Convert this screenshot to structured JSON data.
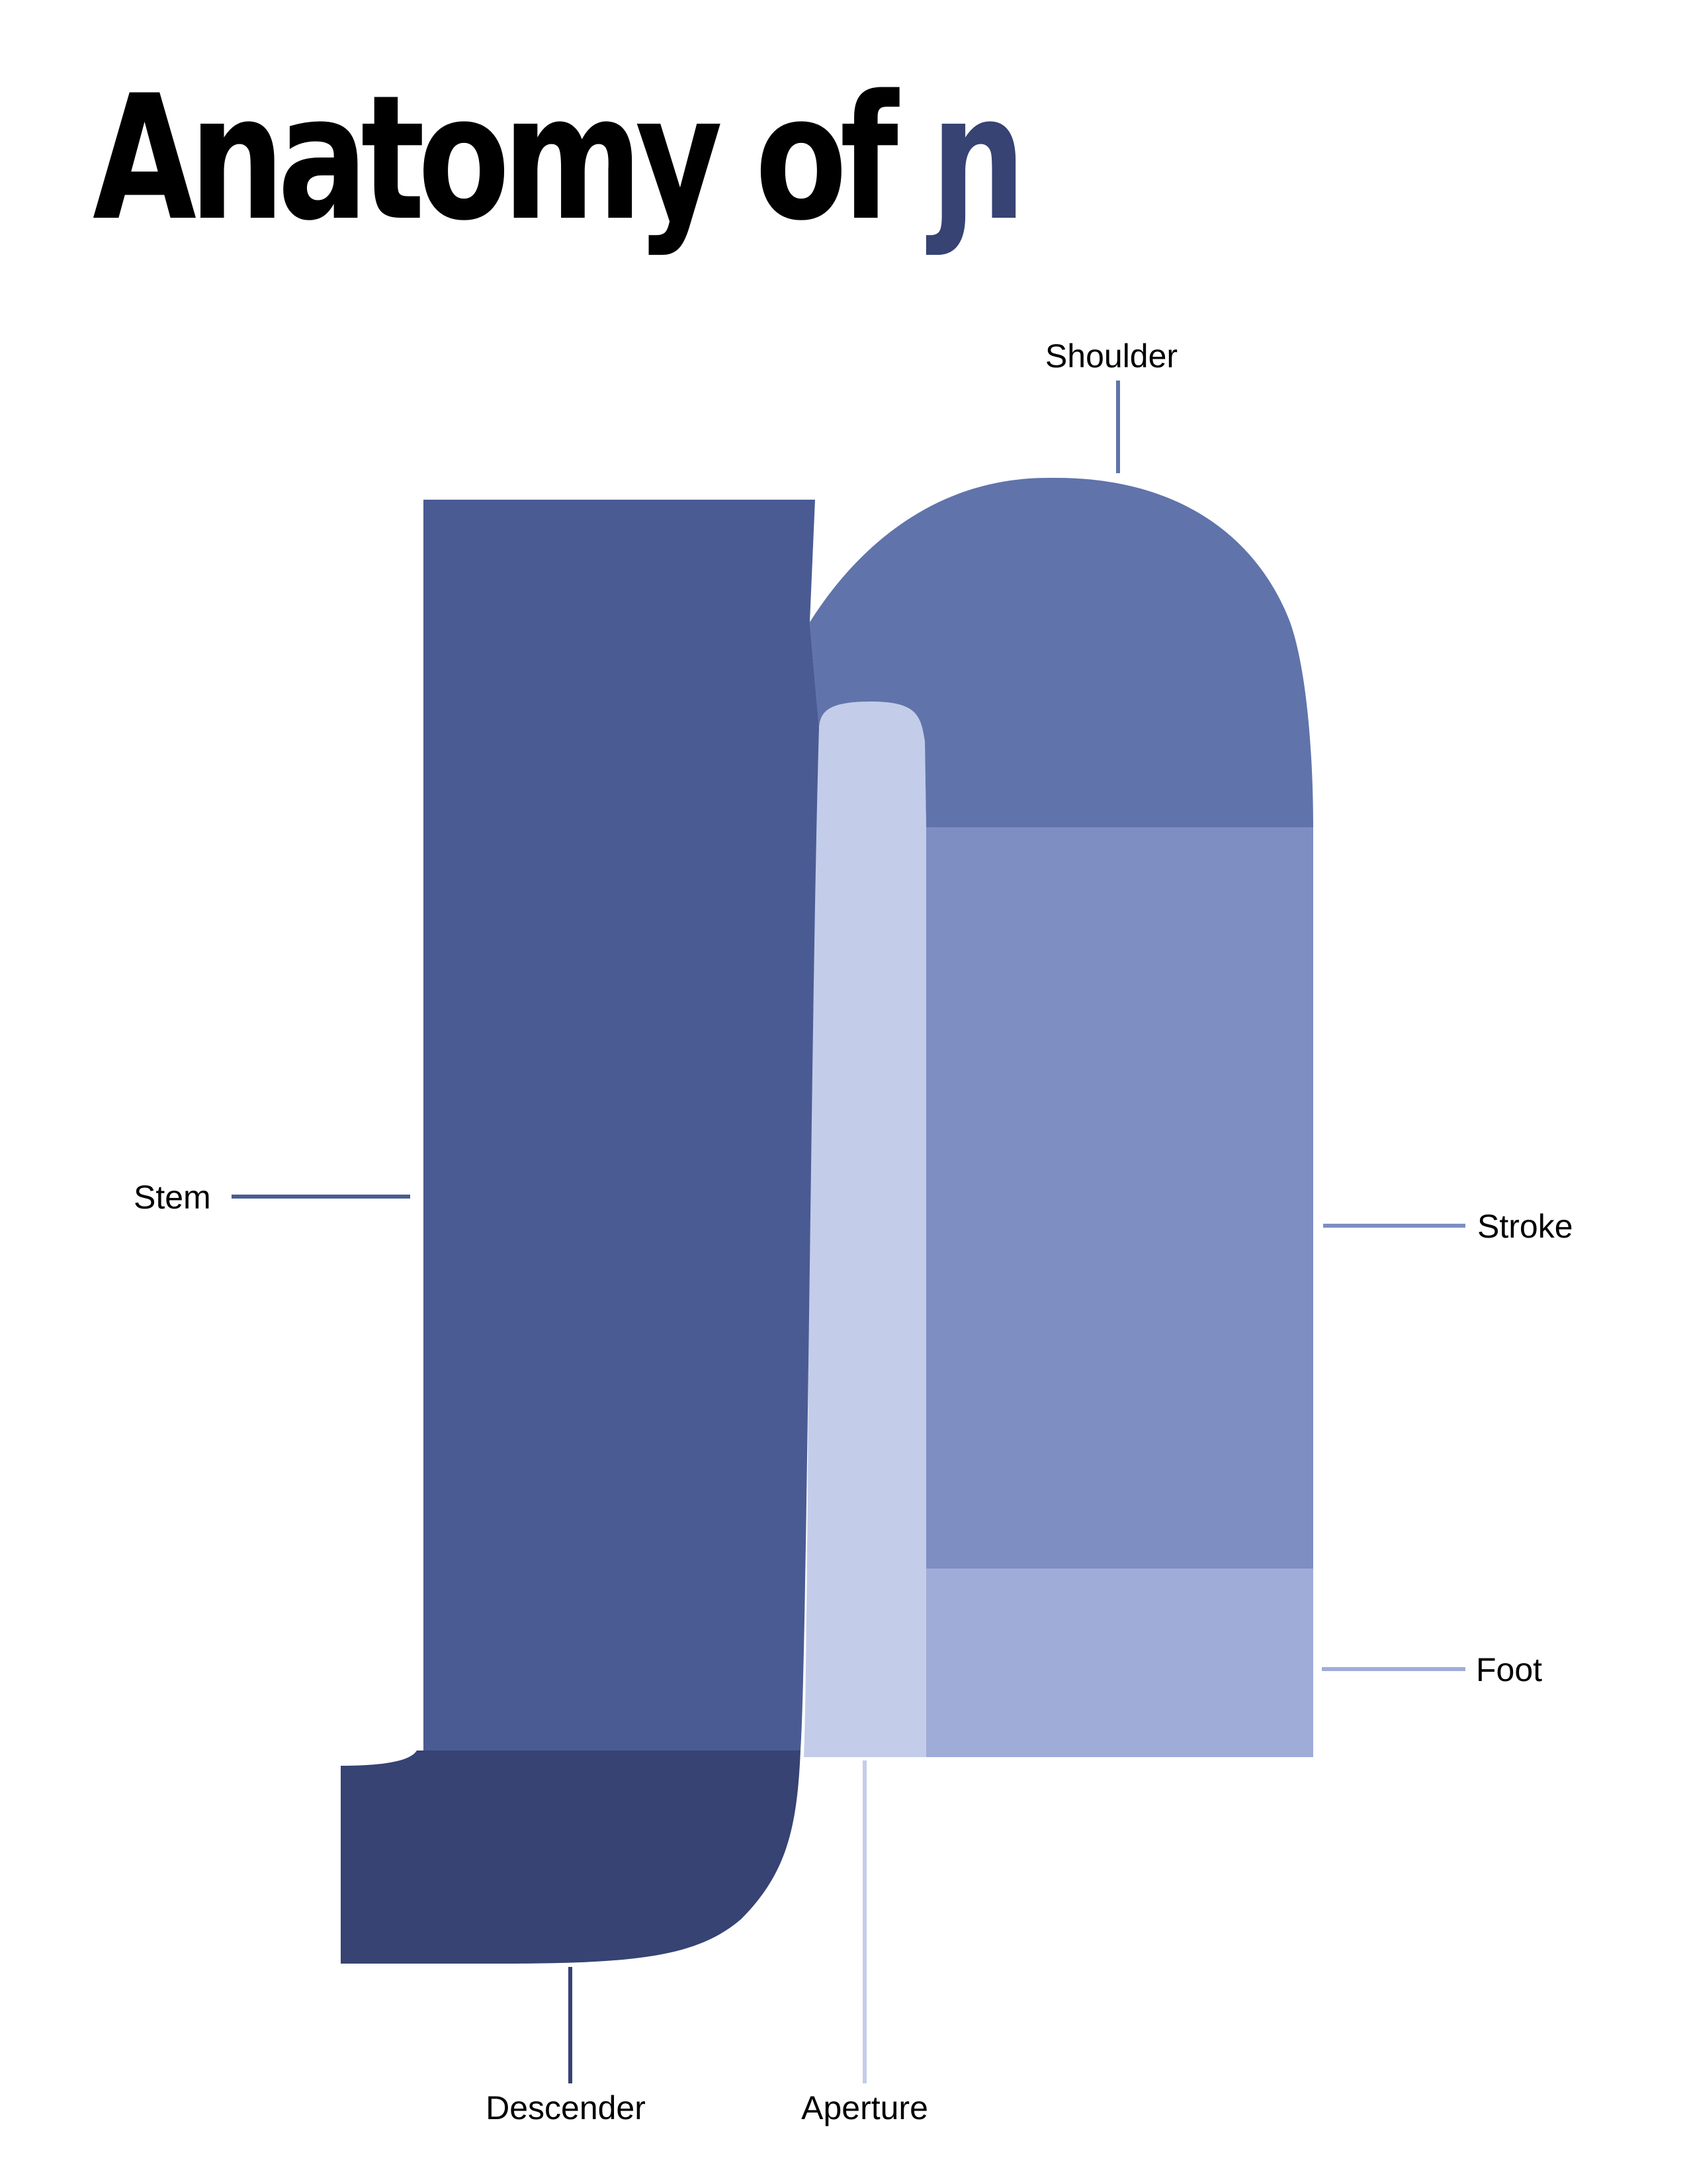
{
  "title": {
    "text": "Anatomy of ",
    "glyph": "ɲ"
  },
  "parts": [
    {
      "key": "shoulder",
      "label": "Shoulder",
      "color": "#6073ab"
    },
    {
      "key": "stem",
      "label": "Stem",
      "color": "#4a5b94"
    },
    {
      "key": "stroke",
      "label": "Stroke",
      "color": "#7e8ec3"
    },
    {
      "key": "foot",
      "label": "Foot",
      "color": "#a0acd8"
    },
    {
      "key": "descender",
      "label": "Descender",
      "color": "#364373"
    },
    {
      "key": "aperture",
      "label": "Aperture",
      "color": "#c3cde9"
    }
  ]
}
